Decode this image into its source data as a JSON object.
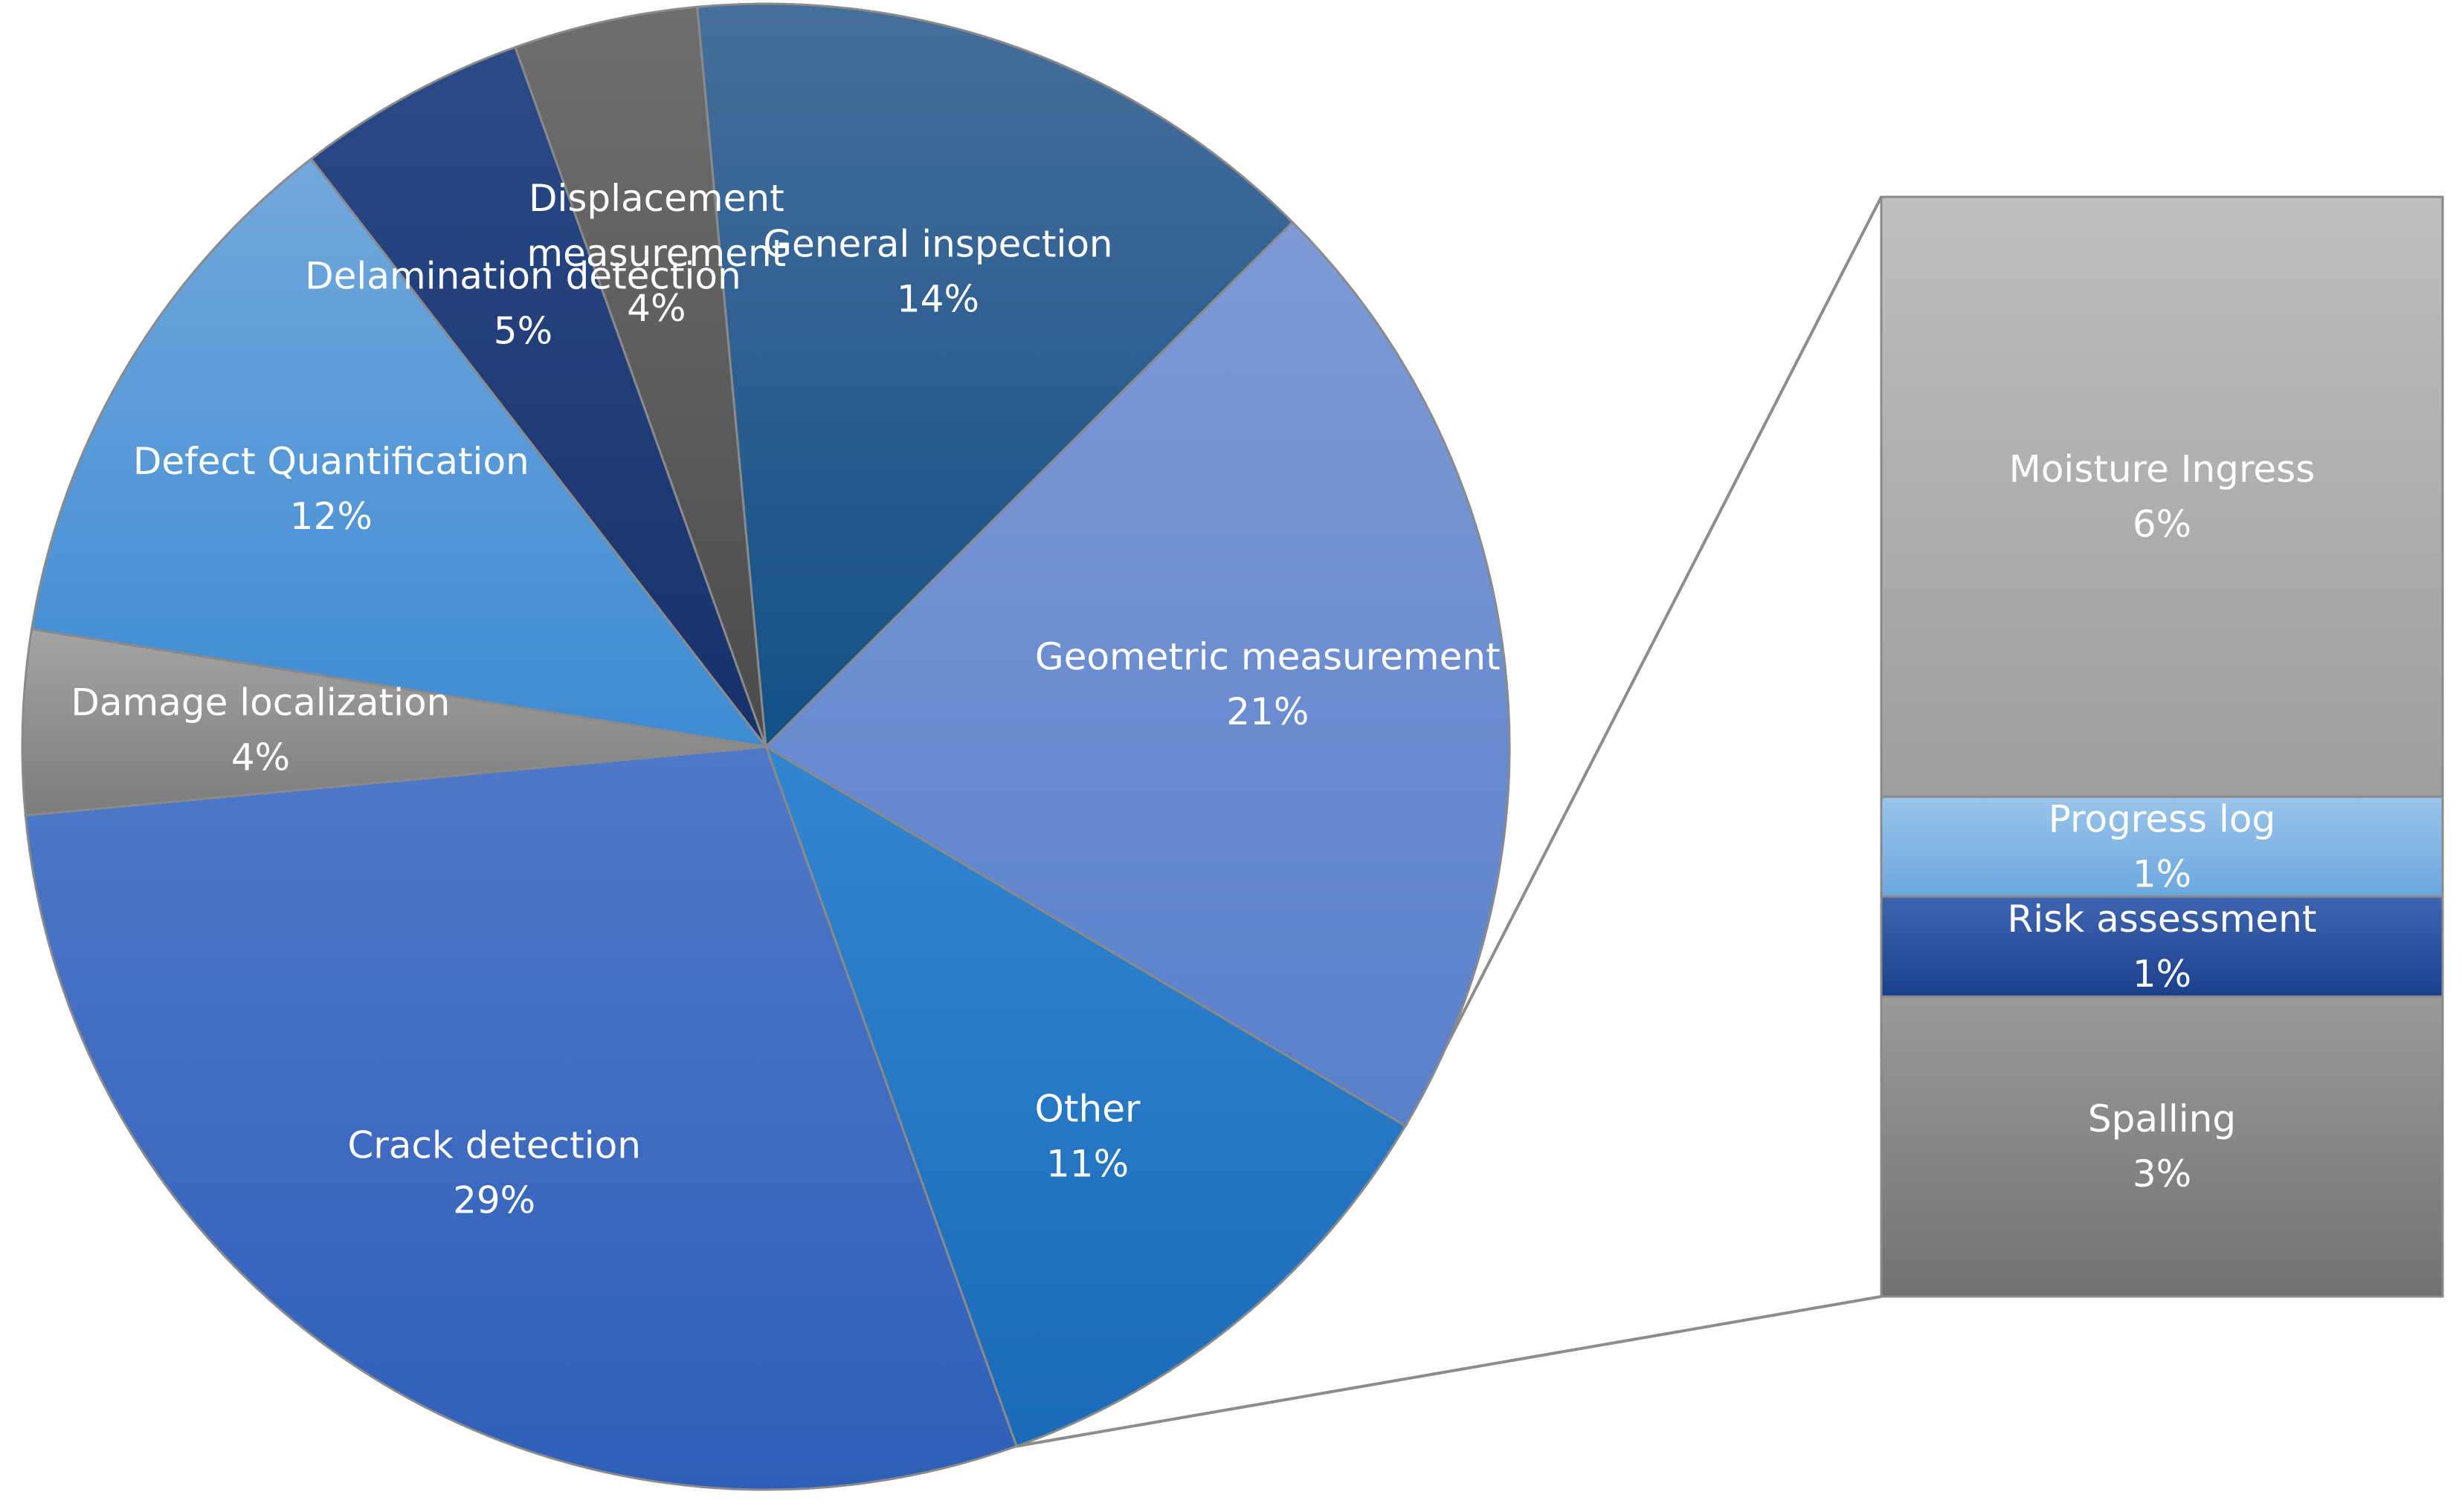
{
  "chart_data": {
    "type": "pie",
    "subtype": "bar-of-pie",
    "slices": [
      {
        "name": "General inspection",
        "lines": [
          "General inspection"
        ],
        "value": 14,
        "label": "14%",
        "colors": [
          "#476e9b",
          "#114f86"
        ]
      },
      {
        "name": "Geometric measurement",
        "lines": [
          "Geometric measurement"
        ],
        "value": 21,
        "label": "21%",
        "colors": [
          "#7e9bd6",
          "#5a80ca"
        ]
      },
      {
        "name": "Other",
        "lines": [
          "Other"
        ],
        "value": 11,
        "label": "11%",
        "colors": [
          "#3286d0",
          "#1a6ab8"
        ],
        "exploded": true
      },
      {
        "name": "Crack detection",
        "lines": [
          "Crack detection"
        ],
        "value": 29,
        "label": "29%",
        "colors": [
          "#4f78c8",
          "#2e5fb8"
        ]
      },
      {
        "name": "Damage localization",
        "lines": [
          "Damage localization"
        ],
        "value": 4,
        "label": "4%",
        "colors": [
          "#a4a4a4",
          "#7c7c7c"
        ]
      },
      {
        "name": "Defect Quantification",
        "lines": [
          "Defect Quantification"
        ],
        "value": 12,
        "label": "12%",
        "colors": [
          "#72a8dc",
          "#3e8bd3"
        ]
      },
      {
        "name": "Delamination detection",
        "lines": [
          "Delamination detection"
        ],
        "value": 5,
        "label": "5%",
        "colors": [
          "#2b4a86",
          "#16306a"
        ]
      },
      {
        "name": "Displacement measurement",
        "lines": [
          "Displacement",
          "measurement"
        ],
        "value": 4,
        "label": "4%",
        "colors": [
          "#6e6e6e",
          "#4b4b4b"
        ]
      }
    ],
    "breakdown": {
      "of": "Other",
      "items": [
        {
          "name": "Moisture Ingress",
          "lines": [
            "Moisture Ingress"
          ],
          "value": 6,
          "label": "6%",
          "colors": [
            "#bfbfbf",
            "#9e9e9e"
          ]
        },
        {
          "name": "Progress log",
          "lines": [
            "Progress log"
          ],
          "value": 1,
          "label": "1%",
          "colors": [
            "#9ac4ea",
            "#6ca8de"
          ]
        },
        {
          "name": "Risk assessment",
          "lines": [
            "Risk assessment"
          ],
          "value": 1,
          "label": "1%",
          "colors": [
            "#3e64b0",
            "#1c3f8c"
          ]
        },
        {
          "name": "Spalling",
          "lines": [
            "Spalling"
          ],
          "value": 3,
          "label": "3%",
          "colors": [
            "#9a9a9a",
            "#727272"
          ]
        }
      ]
    },
    "legend": "none"
  }
}
